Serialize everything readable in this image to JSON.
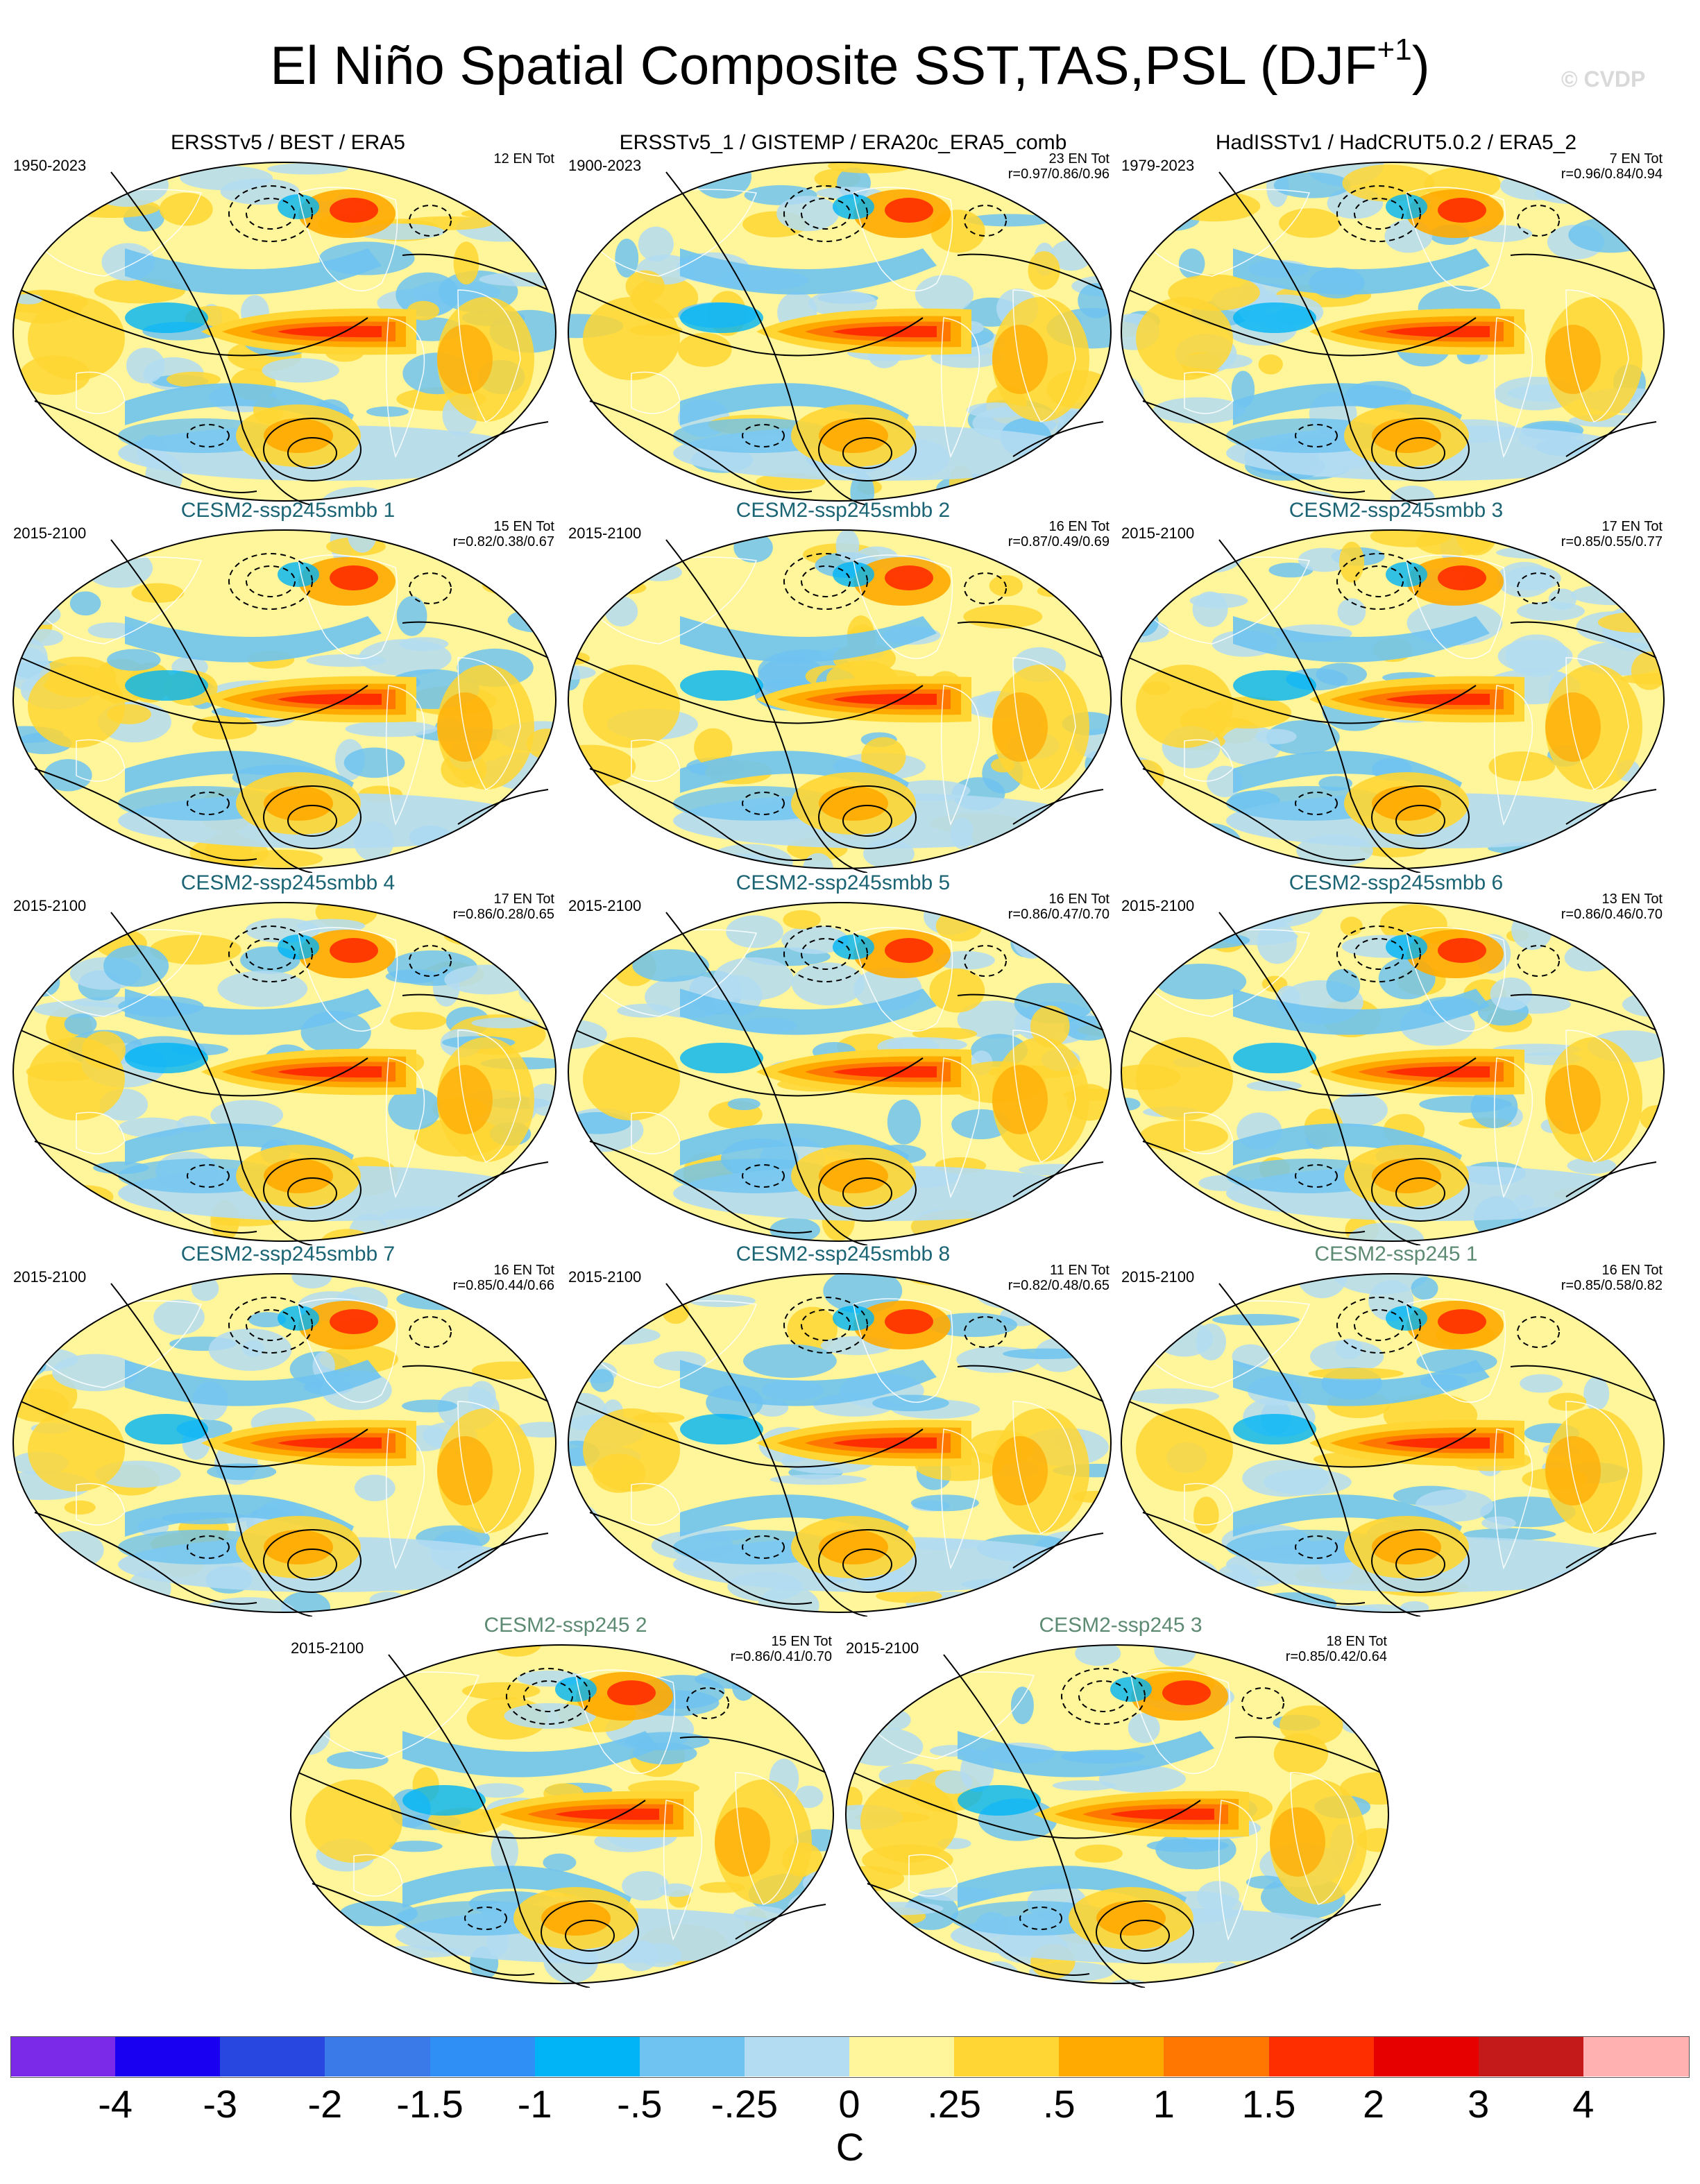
{
  "title": "El Niño Spatial Composite SST,TAS,PSL (DJF",
  "title_sup": "+1",
  "title_close": ")",
  "copyright": "© CVDP",
  "colors": {
    "palette": [
      "#7b2be8",
      "#1a00f0",
      "#2747e0",
      "#3a7ae8",
      "#2f8ff5",
      "#00b4f5",
      "#6ec3f0",
      "#b3dcf2",
      "#fff59a",
      "#ffd633",
      "#ffaa00",
      "#ff7700",
      "#ff2e00",
      "#e60000",
      "#c41a1a",
      "#ffb0b0"
    ],
    "obs_title": "#000000",
    "smbb_title": "#1b6474",
    "ssp_title": "#5d8a72"
  },
  "panels": [
    {
      "name": "ERSSTv5 / BEST / ERA5",
      "kind": "obs",
      "period": "1950-2023",
      "en": "12 EN Tot",
      "r": ""
    },
    {
      "name": "ERSSTv5_1 / GISTEMP / ERA20c_ERA5_comb",
      "kind": "obs",
      "period": "1900-2023",
      "en": "23 EN Tot",
      "r": "r=0.97/0.86/0.96"
    },
    {
      "name": "HadISSTv1 / HadCRUT5.0.2 / ERA5_2",
      "kind": "obs",
      "period": "1979-2023",
      "en": "7 EN Tot",
      "r": "r=0.96/0.84/0.94"
    },
    {
      "name": "CESM2-ssp245smbb 1",
      "kind": "smbb",
      "period": "2015-2100",
      "en": "15 EN Tot",
      "r": "r=0.82/0.38/0.67"
    },
    {
      "name": "CESM2-ssp245smbb 2",
      "kind": "smbb",
      "period": "2015-2100",
      "en": "16 EN Tot",
      "r": "r=0.87/0.49/0.69"
    },
    {
      "name": "CESM2-ssp245smbb 3",
      "kind": "smbb",
      "period": "2015-2100",
      "en": "17 EN Tot",
      "r": "r=0.85/0.55/0.77"
    },
    {
      "name": "CESM2-ssp245smbb 4",
      "kind": "smbb",
      "period": "2015-2100",
      "en": "17 EN Tot",
      "r": "r=0.86/0.28/0.65"
    },
    {
      "name": "CESM2-ssp245smbb 5",
      "kind": "smbb",
      "period": "2015-2100",
      "en": "16 EN Tot",
      "r": "r=0.86/0.47/0.70"
    },
    {
      "name": "CESM2-ssp245smbb 6",
      "kind": "smbb",
      "period": "2015-2100",
      "en": "13 EN Tot",
      "r": "r=0.86/0.46/0.70"
    },
    {
      "name": "CESM2-ssp245smbb 7",
      "kind": "smbb",
      "period": "2015-2100",
      "en": "16 EN Tot",
      "r": "r=0.85/0.44/0.66"
    },
    {
      "name": "CESM2-ssp245smbb 8",
      "kind": "smbb",
      "period": "2015-2100",
      "en": "11 EN Tot",
      "r": "r=0.82/0.48/0.65"
    },
    {
      "name": "CESM2-ssp245 1",
      "kind": "ssp",
      "period": "2015-2100",
      "en": "16 EN Tot",
      "r": "r=0.85/0.58/0.82"
    },
    {
      "name": "CESM2-ssp245 2",
      "kind": "ssp",
      "period": "2015-2100",
      "en": "15 EN Tot",
      "r": "r=0.86/0.41/0.70"
    },
    {
      "name": "CESM2-ssp245 3",
      "kind": "ssp",
      "period": "2015-2100",
      "en": "18 EN Tot",
      "r": "r=0.85/0.42/0.64"
    }
  ],
  "colorbar": {
    "labels": [
      "-4",
      "-3",
      "-2",
      "-1.5",
      "-1",
      "-.5",
      "-.25",
      "0",
      ".25",
      ".5",
      "1",
      "1.5",
      "2",
      "3",
      "4"
    ],
    "unit": "C"
  }
}
